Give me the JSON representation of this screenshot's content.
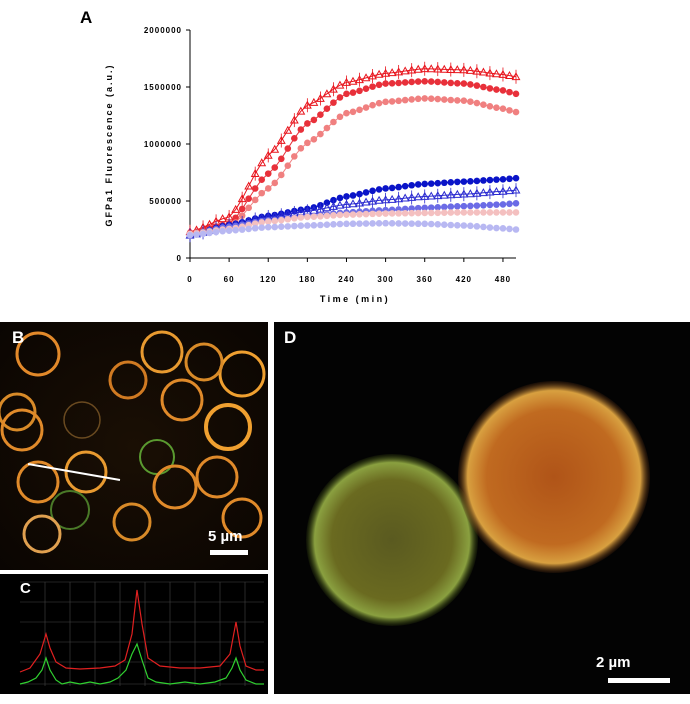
{
  "panels": {
    "a": {
      "letter": "A"
    },
    "b": {
      "letter": "B",
      "scale_label": "5 µm"
    },
    "c": {
      "letter": "C"
    },
    "d": {
      "letter": "D",
      "scale_label": "2 µm"
    }
  },
  "chart_data": {
    "type": "line",
    "title": "",
    "xlabel": "Time (min)",
    "ylabel": "GFPa1 Fluorescence (a.u.)",
    "xlim": [
      0,
      500
    ],
    "ylim": [
      0,
      2000000
    ],
    "x_ticks": [
      "0",
      "60",
      "120",
      "180",
      "240",
      "300",
      "360",
      "420",
      "480"
    ],
    "y_ticks": [
      "0",
      "500000",
      "1000000",
      "1500000",
      "2000000"
    ],
    "grid": false,
    "legend": "none",
    "x": [
      0,
      60,
      120,
      180,
      240,
      300,
      360,
      420,
      480,
      500
    ],
    "series": [
      {
        "color": "#e8141c",
        "marker": "triangle",
        "values": [
          230000,
          360000,
          900000,
          1340000,
          1540000,
          1620000,
          1660000,
          1650000,
          1610000,
          1590000
        ]
      },
      {
        "color": "#e8303a",
        "marker": "circle",
        "values": [
          220000,
          300000,
          740000,
          1180000,
          1440000,
          1530000,
          1550000,
          1530000,
          1470000,
          1440000
        ]
      },
      {
        "color": "#f08080",
        "marker": "circle",
        "values": [
          215000,
          270000,
          610000,
          1010000,
          1270000,
          1370000,
          1400000,
          1380000,
          1310000,
          1280000
        ]
      },
      {
        "color": "#0a14c8",
        "marker": "circle",
        "values": [
          200000,
          290000,
          370000,
          430000,
          540000,
          610000,
          650000,
          670000,
          690000,
          700000
        ]
      },
      {
        "color": "#2a2ad0",
        "marker": "triangle",
        "values": [
          200000,
          285000,
          360000,
          410000,
          470000,
          510000,
          540000,
          560000,
          585000,
          595000
        ]
      },
      {
        "color": "#6b6be6",
        "marker": "circle",
        "values": [
          205000,
          275000,
          330000,
          365000,
          400000,
          420000,
          440000,
          455000,
          470000,
          480000
        ]
      },
      {
        "color": "#f4c0c0",
        "marker": "circle",
        "values": [
          210000,
          255000,
          320000,
          360000,
          380000,
          390000,
          395000,
          400000,
          400000,
          400000
        ]
      },
      {
        "color": "#b8b8f2",
        "marker": "circle",
        "values": [
          200000,
          240000,
          270000,
          285000,
          300000,
          305000,
          300000,
          285000,
          260000,
          250000
        ]
      }
    ]
  }
}
